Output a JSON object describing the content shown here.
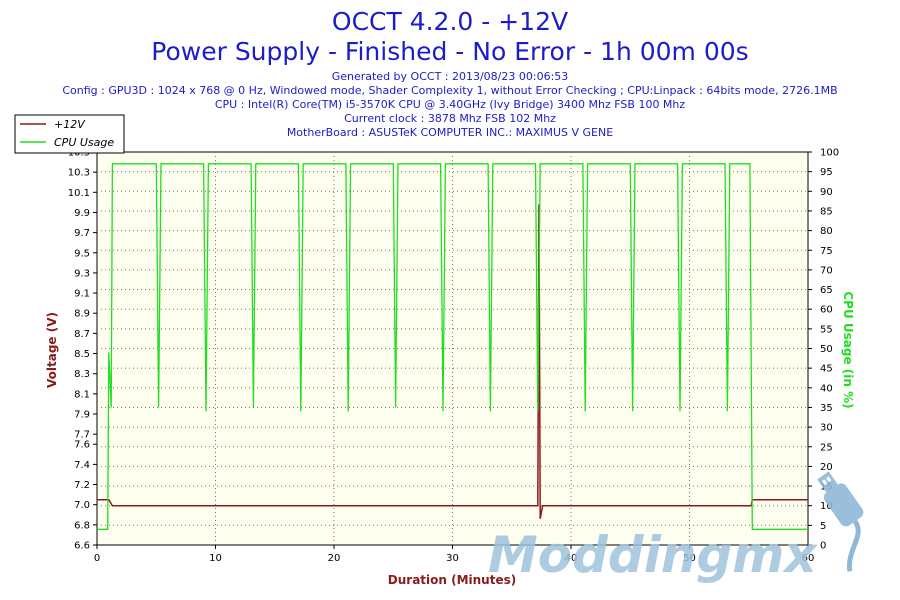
{
  "header": {
    "title": "OCCT 4.2.0 - +12V",
    "subtitle": "Power Supply - Finished - No Error - 1h 00m 00s",
    "info_lines": [
      "Generated by OCCT : 2013/08/23 00:06:53",
      "Config : GPU3D : 1024 x 768 @ 0 Hz, Windowed mode, Shader Complexity 1, without Error Checking ; CPU:Linpack : 64bits mode, 2726.1MB",
      "CPU : Intel(R) Core(TM) i5-3570K CPU @ 3.40GHz (Ivy Bridge) 3400 Mhz FSB 100 Mhz",
      "Current clock : 3878 Mhz FSB 102 Mhz",
      "MotherBoard : ASUSTeK COMPUTER INC.: MAXIMUS V GENE"
    ]
  },
  "legend": {
    "placement": "top-left",
    "items": [
      {
        "label": "+12V",
        "color": "#8b1a1a"
      },
      {
        "label": "CPU Usage",
        "color": "#22dd22"
      }
    ]
  },
  "watermark": {
    "text": "Moddingmx",
    "icon": "usb-plug-icon",
    "color": "#9fc3dc"
  },
  "colors": {
    "plot_bg": "#fffff0",
    "voltage": "#8b1a1a",
    "cpu": "#22dd22",
    "grid": "#777777"
  },
  "chart_data": {
    "type": "line",
    "grid": true,
    "xlabel": "Duration (Minutes)",
    "xlim": [
      0,
      60
    ],
    "x_ticks": [
      0,
      10,
      20,
      30,
      40,
      50,
      60
    ],
    "y_left": {
      "label": "Voltage (V)",
      "lim": [
        6.6,
        10.5
      ],
      "ticks": [
        6.6,
        6.8,
        7.0,
        7.2,
        7.4,
        7.6,
        7.7,
        7.9,
        8.1,
        8.3,
        8.5,
        8.7,
        8.9,
        9.1,
        9.3,
        9.5,
        9.7,
        9.9,
        10.1,
        10.3,
        10.5
      ]
    },
    "y_right": {
      "label": "CPU Usage (in %)",
      "lim": [
        0,
        100
      ],
      "ticks": [
        0,
        5,
        10,
        15,
        20,
        25,
        30,
        35,
        40,
        45,
        50,
        55,
        60,
        65,
        70,
        75,
        80,
        85,
        90,
        95,
        100
      ]
    },
    "series": [
      {
        "name": "+12V",
        "axis": "left",
        "color": "#8b1a1a",
        "x": [
          0,
          1.0,
          1.3,
          37.2,
          37.3,
          37.4,
          37.6,
          55.2,
          55.3,
          60
        ],
        "values": [
          7.05,
          7.05,
          6.99,
          6.99,
          9.98,
          6.86,
          6.99,
          6.99,
          7.05,
          7.05
        ]
      },
      {
        "name": "CPU Usage",
        "axis": "right",
        "color": "#22dd22",
        "x": [
          0,
          0.9,
          1.0,
          1.2,
          1.3,
          5.0,
          5.2,
          5.4,
          9.0,
          9.2,
          9.4,
          13.0,
          13.2,
          13.4,
          17.0,
          17.2,
          17.4,
          21.0,
          21.2,
          21.4,
          25.0,
          25.2,
          25.4,
          29.0,
          29.2,
          29.4,
          33.0,
          33.2,
          33.4,
          37.0,
          37.2,
          37.4,
          41.0,
          41.2,
          41.4,
          45.0,
          45.2,
          45.4,
          49.0,
          49.2,
          49.4,
          53.0,
          53.2,
          53.4,
          55.0,
          55.1,
          55.3,
          60
        ],
        "values": [
          4,
          4,
          49,
          35,
          97,
          97,
          35,
          97,
          97,
          34,
          97,
          97,
          35,
          97,
          97,
          34,
          97,
          97,
          34,
          97,
          97,
          35,
          97,
          97,
          34,
          97,
          97,
          34,
          97,
          97,
          34,
          97,
          97,
          34,
          97,
          97,
          34,
          97,
          97,
          34,
          97,
          97,
          34,
          97,
          97,
          97,
          4,
          4
        ]
      }
    ]
  }
}
